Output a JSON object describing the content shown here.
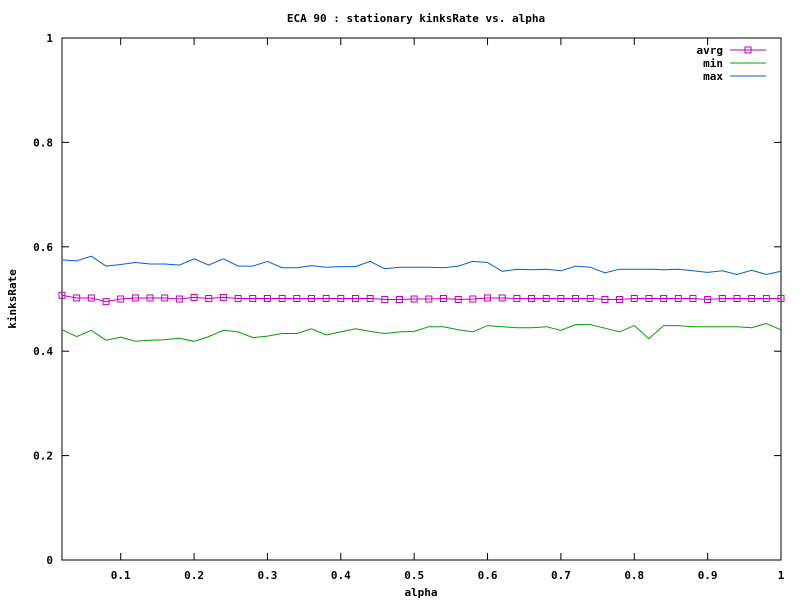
{
  "chart_data": {
    "type": "line",
    "title": "ECA 90 : stationary kinksRate vs. alpha",
    "xlabel": "alpha",
    "ylabel": "kinksRate",
    "xlim": [
      0.02,
      1.0
    ],
    "ylim": [
      0,
      1
    ],
    "xticks": [
      "0.1",
      "0.2",
      "0.3",
      "0.4",
      "0.5",
      "0.6",
      "0.7",
      "0.8",
      "0.9",
      "1"
    ],
    "xtick_values": [
      0.1,
      0.2,
      0.3,
      0.4,
      0.5,
      0.6,
      0.7,
      0.8,
      0.9,
      1.0
    ],
    "yticks": [
      "0",
      "0.2",
      "0.4",
      "0.6",
      "0.8",
      "1"
    ],
    "ytick_values": [
      0,
      0.2,
      0.4,
      0.6,
      0.8,
      1.0
    ],
    "grid": false,
    "legend_position": "top-right",
    "x": [
      0.02,
      0.04,
      0.06,
      0.08,
      0.1,
      0.12,
      0.14,
      0.16,
      0.18,
      0.2,
      0.22,
      0.24,
      0.26,
      0.28,
      0.3,
      0.32,
      0.34,
      0.36,
      0.38,
      0.4,
      0.42,
      0.44,
      0.46,
      0.48,
      0.5,
      0.52,
      0.54,
      0.56,
      0.58,
      0.6,
      0.62,
      0.64,
      0.66,
      0.68,
      0.7,
      0.72,
      0.74,
      0.76,
      0.78,
      0.8,
      0.82,
      0.84,
      0.86,
      0.88,
      0.9,
      0.92,
      0.94,
      0.96,
      0.98,
      1.0
    ],
    "series": [
      {
        "name": "avrg",
        "color": "#c000c0",
        "marker": "square",
        "values": [
          0.507,
          0.502,
          0.502,
          0.495,
          0.5,
          0.502,
          0.502,
          0.502,
          0.5,
          0.503,
          0.501,
          0.503,
          0.501,
          0.501,
          0.501,
          0.501,
          0.501,
          0.501,
          0.501,
          0.501,
          0.501,
          0.501,
          0.499,
          0.499,
          0.5,
          0.5,
          0.501,
          0.499,
          0.5,
          0.502,
          0.502,
          0.501,
          0.501,
          0.501,
          0.501,
          0.501,
          0.501,
          0.499,
          0.499,
          0.501,
          0.501,
          0.501,
          0.501,
          0.501,
          0.499,
          0.501,
          0.501,
          0.501,
          0.501,
          0.501
        ]
      },
      {
        "name": "min",
        "color": "#00a000",
        "marker": "none",
        "values": [
          0.441,
          0.428,
          0.44,
          0.421,
          0.427,
          0.419,
          0.421,
          0.422,
          0.425,
          0.419,
          0.428,
          0.44,
          0.437,
          0.426,
          0.429,
          0.434,
          0.434,
          0.443,
          0.431,
          0.437,
          0.443,
          0.438,
          0.434,
          0.437,
          0.438,
          0.447,
          0.447,
          0.441,
          0.437,
          0.449,
          0.447,
          0.445,
          0.445,
          0.447,
          0.44,
          0.451,
          0.451,
          0.444,
          0.437,
          0.449,
          0.424,
          0.449,
          0.449,
          0.447,
          0.447,
          0.447,
          0.447,
          0.445,
          0.453,
          0.441
        ]
      },
      {
        "name": "max",
        "color": "#0060d0",
        "marker": "none",
        "values": [
          0.575,
          0.573,
          0.582,
          0.563,
          0.566,
          0.57,
          0.567,
          0.567,
          0.565,
          0.577,
          0.565,
          0.577,
          0.563,
          0.563,
          0.572,
          0.56,
          0.56,
          0.564,
          0.561,
          0.562,
          0.562,
          0.572,
          0.558,
          0.561,
          0.561,
          0.561,
          0.56,
          0.563,
          0.572,
          0.57,
          0.553,
          0.557,
          0.556,
          0.557,
          0.554,
          0.563,
          0.561,
          0.55,
          0.557,
          0.557,
          0.557,
          0.556,
          0.557,
          0.554,
          0.551,
          0.554,
          0.547,
          0.555,
          0.547,
          0.553
        ]
      }
    ]
  }
}
